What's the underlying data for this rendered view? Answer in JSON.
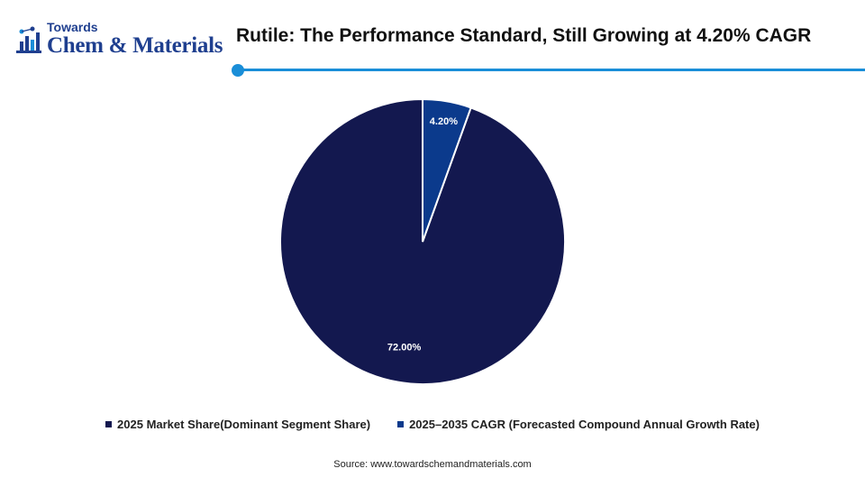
{
  "brand": {
    "small": "Towards",
    "big": "Chem & Materials",
    "mark_icon": "flask-molecule-icon",
    "color": "#1f3f8f"
  },
  "header": {
    "title": "Rutile: The Performance Standard, Still Growing at 4.20% CAGR",
    "accent_color": "#1a8ed8"
  },
  "chart_data": {
    "type": "pie",
    "title": "Rutile: The Performance Standard, Still Growing at 4.20% CAGR",
    "start_angle_deg": 0,
    "direction": "counterclockwise",
    "slices": [
      {
        "label": "2025 Market Share(Dominant Segment Share)",
        "value": 72.0,
        "display": "72.00%",
        "color": "#13184f"
      },
      {
        "label": "2025–2035 CAGR (Forecasted Compound Annual Growth Rate)",
        "value": 4.2,
        "display": "4.20%",
        "color": "#0b3a8c"
      }
    ],
    "legend_position": "bottom"
  },
  "footer": {
    "source": "Source: www.towardschemandmaterials.com"
  }
}
